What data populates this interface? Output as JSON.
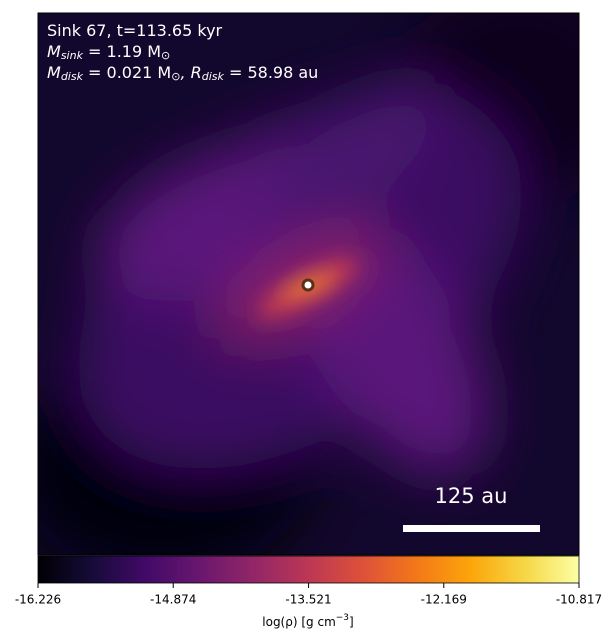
{
  "chart_data": {
    "type": "image",
    "annotations": [
      [
        "Sink 67, t=113.65 kyr"
      ],
      [
        "M",
        "sink",
        " = 1.19 M",
        "⊙"
      ],
      [
        "M",
        "disk",
        " = 0.021 M",
        "⊙",
        ", R",
        "disk",
        " = 58.98 au"
      ]
    ],
    "scale_bar": {
      "label": "125 au"
    },
    "colormap": "inferno",
    "colorbar": {
      "label": [
        "log(ρ) [g cm",
        "−3",
        "]"
      ],
      "lim": [
        -16.226,
        -10.817
      ],
      "ticks": [
        -16.226,
        -14.874,
        -13.521,
        -12.169,
        -10.817
      ]
    }
  }
}
